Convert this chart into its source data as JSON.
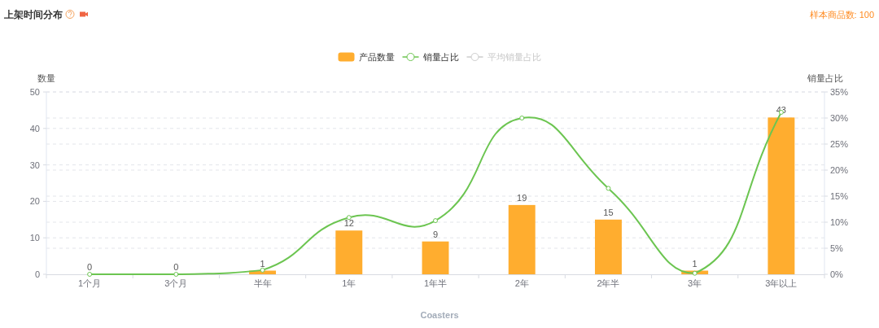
{
  "chart_data": {
    "type": "bar",
    "title": "上架时间分布",
    "ylabel": "数量",
    "y2label": "销量占比",
    "categories": [
      "1个月",
      "3个月",
      "半年",
      "1年",
      "1年半",
      "2年",
      "2年半",
      "3年",
      "3年以上"
    ],
    "series": [
      {
        "name": "产品数量",
        "color": "#ffad2f",
        "values": [
          0,
          0,
          1,
          12,
          9,
          19,
          15,
          1,
          43
        ],
        "value_labels": [
          "0",
          "0",
          "1",
          "12",
          "9",
          "19",
          "15",
          "1",
          "43"
        ]
      },
      {
        "name": "销量占比",
        "type": "line",
        "axis": "y2",
        "color": "#6cc551",
        "marker": "circle",
        "values": [
          0,
          0,
          0.8,
          10.9,
          10.3,
          30,
          16.5,
          0.2,
          31.1
        ]
      },
      {
        "name": "平均销量占比",
        "type": "line",
        "axis": "y2",
        "color": "#cccccc",
        "marker": "circle",
        "values": [
          null,
          null,
          null,
          null,
          null,
          null,
          null,
          null,
          null
        ]
      }
    ],
    "ylim": [
      0,
      50
    ],
    "yticks": [
      0,
      10,
      20,
      30,
      40,
      50
    ],
    "y2lim": [
      0,
      35
    ],
    "y2ticks": [
      {
        "value": 0,
        "label": "0%"
      },
      {
        "value": 5,
        "label": "5%"
      },
      {
        "value": 10,
        "label": "10%"
      },
      {
        "value": 15,
        "label": "15%"
      },
      {
        "value": 20,
        "label": "20%"
      },
      {
        "value": 25,
        "label": "25%"
      },
      {
        "value": 30,
        "label": "30%"
      },
      {
        "value": 35,
        "label": "35%"
      }
    ],
    "grid": "y",
    "legend": "top",
    "annotations": [
      "样本商品数: 100",
      "Coasters"
    ]
  }
}
